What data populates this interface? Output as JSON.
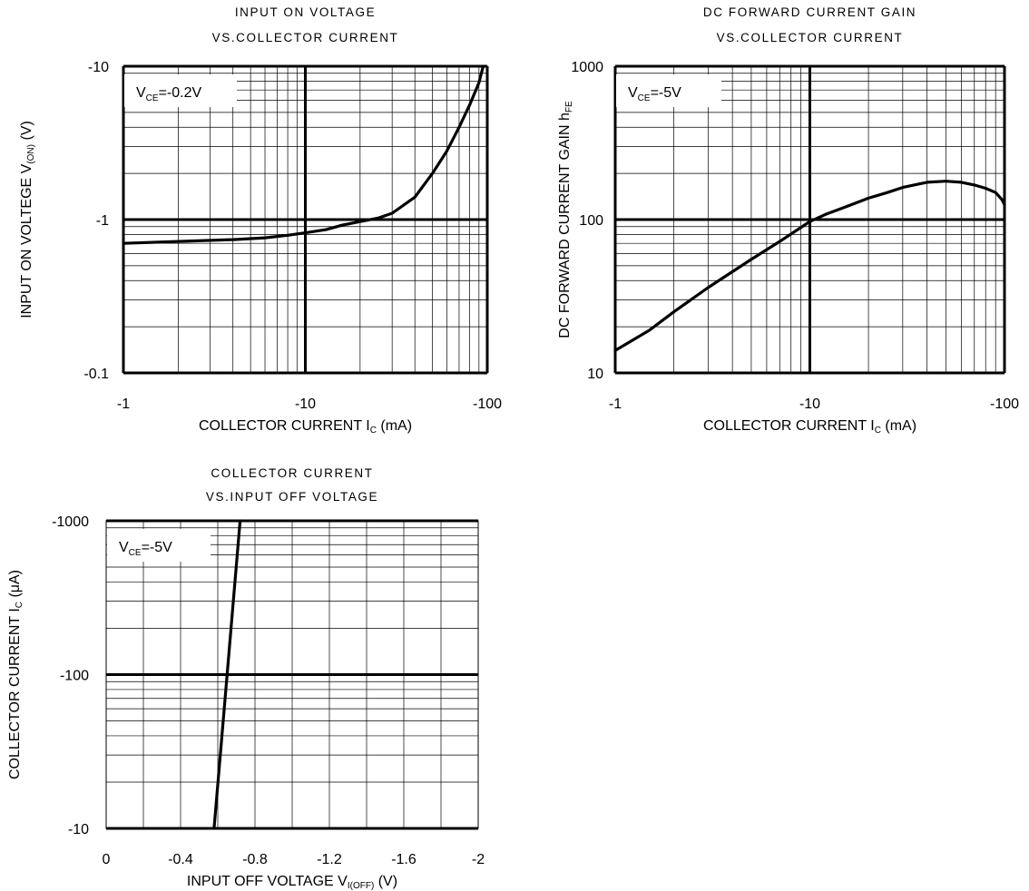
{
  "colors": {
    "grid": "#000000",
    "curve": "#000000",
    "background": "#ffffff"
  },
  "chart_data": [
    {
      "id": "c1",
      "type": "line",
      "title_lines": [
        "INPUT ON VOLTAGE",
        "VS.COLLECTOR CURRENT"
      ],
      "xlabel": {
        "main": "COLLECTOR CURRENT",
        "sym": "I",
        "sub": "C",
        "unit": "(mA)"
      },
      "ylabel": {
        "main": "INPUT ON VOLTEGE",
        "sym": "V",
        "sub": "(ON)",
        "unit": "(V)"
      },
      "legend": {
        "sym": "V",
        "sub": "CE",
        "value": "=-0.2V"
      },
      "xscale": "log",
      "yscale": "log",
      "xlim": [
        1,
        100
      ],
      "ylim": [
        0.1,
        10
      ],
      "x_ticks": [
        1,
        10,
        100
      ],
      "x_tick_labels": [
        "-1",
        "-10",
        "-100"
      ],
      "y_ticks": [
        0.1,
        1,
        10
      ],
      "y_tick_labels": [
        "-0.1",
        "-1",
        "-10"
      ],
      "grid": true,
      "series": [
        {
          "points": [
            [
              1,
              0.7
            ],
            [
              2,
              0.72
            ],
            [
              4,
              0.74
            ],
            [
              6,
              0.76
            ],
            [
              8,
              0.79
            ],
            [
              10,
              0.82
            ],
            [
              13,
              0.86
            ],
            [
              16,
              0.92
            ],
            [
              20,
              0.97
            ],
            [
              25,
              1.02
            ],
            [
              30,
              1.1
            ],
            [
              40,
              1.4
            ],
            [
              50,
              2.0
            ],
            [
              60,
              2.8
            ],
            [
              70,
              4.0
            ],
            [
              80,
              5.6
            ],
            [
              90,
              7.8
            ],
            [
              95,
              10
            ]
          ]
        }
      ]
    },
    {
      "id": "c2",
      "type": "line",
      "title_lines": [
        "DC FORWARD CURRENT GAIN",
        "VS.COLLECTOR CURRENT"
      ],
      "xlabel": {
        "main": "COLLECTOR CURRENT",
        "sym": "I",
        "sub": "C",
        "unit": "(mA)"
      },
      "ylabel": {
        "main": "DC FORWARD CURRENT GAIN",
        "sym": "h",
        "sub": "FE",
        "unit": ""
      },
      "legend": {
        "sym": "V",
        "sub": "CE",
        "value": "=-5V"
      },
      "xscale": "log",
      "yscale": "log",
      "xlim": [
        1,
        100
      ],
      "ylim": [
        10,
        1000
      ],
      "x_ticks": [
        1,
        10,
        100
      ],
      "x_tick_labels": [
        "-1",
        "-10",
        "-100"
      ],
      "y_ticks": [
        10,
        100,
        1000
      ],
      "y_tick_labels": [
        "10",
        "100",
        "1000"
      ],
      "grid": true,
      "series": [
        {
          "points": [
            [
              1,
              14
            ],
            [
              1.5,
              19
            ],
            [
              2,
              25
            ],
            [
              3,
              36
            ],
            [
              5,
              55
            ],
            [
              7,
              72
            ],
            [
              10,
              97
            ],
            [
              12,
              108
            ],
            [
              15,
              120
            ],
            [
              20,
              138
            ],
            [
              25,
              150
            ],
            [
              30,
              162
            ],
            [
              40,
              175
            ],
            [
              50,
              178
            ],
            [
              60,
              175
            ],
            [
              70,
              168
            ],
            [
              80,
              160
            ],
            [
              90,
              150
            ],
            [
              97,
              135
            ],
            [
              100,
              125
            ]
          ]
        }
      ]
    },
    {
      "id": "c3",
      "type": "line",
      "title_lines": [
        "COLLECTOR CURRENT",
        "VS.INPUT OFF VOLTAGE"
      ],
      "xlabel": {
        "main": "INPUT OFF VOLTAGE",
        "sym": "V",
        "sub": "I(OFF)",
        "unit": "(V)"
      },
      "ylabel": {
        "main": "COLLECTOR CURRENT",
        "sym": "I",
        "sub": "C",
        "unit": "(μA)"
      },
      "legend": {
        "sym": "V",
        "sub": "CE",
        "value": "=-5V"
      },
      "xscale": "linear",
      "yscale": "log",
      "xlim": [
        0,
        2
      ],
      "ylim": [
        10,
        1000
      ],
      "x_ticks": [
        0,
        0.4,
        0.8,
        1.2,
        1.6,
        2.0
      ],
      "x_tick_labels": [
        "0",
        "-0.4",
        "-0.8",
        "-1.2",
        "-1.6",
        "-2"
      ],
      "y_ticks": [
        10,
        100,
        1000
      ],
      "y_tick_labels": [
        "-10",
        "-100",
        "-1000"
      ],
      "x_grid_step": 0.2,
      "grid": true,
      "series": [
        {
          "points": [
            [
              0.58,
              10
            ],
            [
              0.65,
              100
            ],
            [
              0.72,
              1000
            ]
          ]
        }
      ]
    }
  ]
}
